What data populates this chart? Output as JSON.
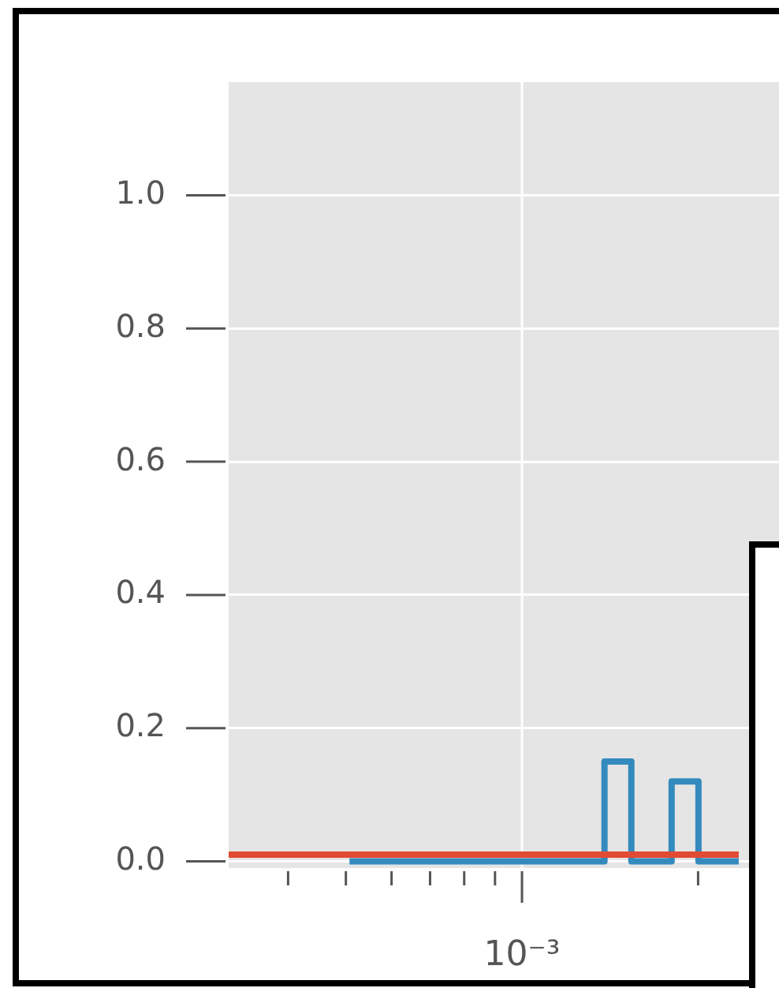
{
  "chart_data": {
    "type": "step",
    "grid": true,
    "tick_labels": "y",
    "categories": [
      null,
      null,
      null,
      null,
      null,
      null,
      null,
      null,
      null,
      null,
      null,
      null,
      null,
      null,
      null,
      null,
      null,
      null,
      null,
      null,
      null,
      null,
      null,
      null,
      null,
      null,
      null,
      null,
      null,
      null,
      null,
      null,
      null,
      null,
      null,
      null,
      null,
      null,
      null,
      null,
      null,
      null
    ],
    "annotations": [
      "10⁻³"
    ],
    "ylim": [
      -0.01,
      1.17
    ],
    "yticks": [
      {
        "value": 0,
        "label": "0.0"
      },
      {
        "value": 0.2,
        "label": "0.2"
      },
      {
        "value": 0.4,
        "label": "0.4"
      },
      {
        "value": 0.6,
        "label": "0.6"
      },
      {
        "value": 0.8,
        "label": "0.8"
      },
      {
        "value": 1,
        "label": "1.0"
      }
    ],
    "series": [
      {
        "color": "#e24a33",
        "values": [
          0.01,
          0.01,
          0.01,
          0.01,
          0.01,
          0.01,
          0.01,
          0.01,
          0.01,
          0.01,
          0.01,
          0.01,
          0.01,
          0.01,
          0.01,
          0.01,
          0.01,
          0.01,
          0.01,
          0.01,
          0.01,
          0.01,
          0.01,
          0.01,
          0.01,
          0.01,
          0.01,
          0.01,
          0.01,
          0.01,
          0.01,
          0.01,
          0.01,
          0.01,
          0.01,
          0.01,
          0.01,
          0.01,
          0.01,
          null,
          null,
          null
        ]
      },
      {
        "color": "#348abd",
        "values": [
          null,
          null,
          null,
          null,
          null,
          null,
          null,
          null,
          null,
          0,
          0,
          0,
          0,
          0,
          0,
          0,
          0,
          0,
          0,
          0,
          0,
          0,
          0,
          0,
          0,
          0,
          0,
          0,
          0.15,
          0.15,
          0,
          0,
          0,
          0.12,
          0.12,
          0,
          0,
          0,
          0,
          null,
          null,
          null
        ]
      }
    ]
  }
}
